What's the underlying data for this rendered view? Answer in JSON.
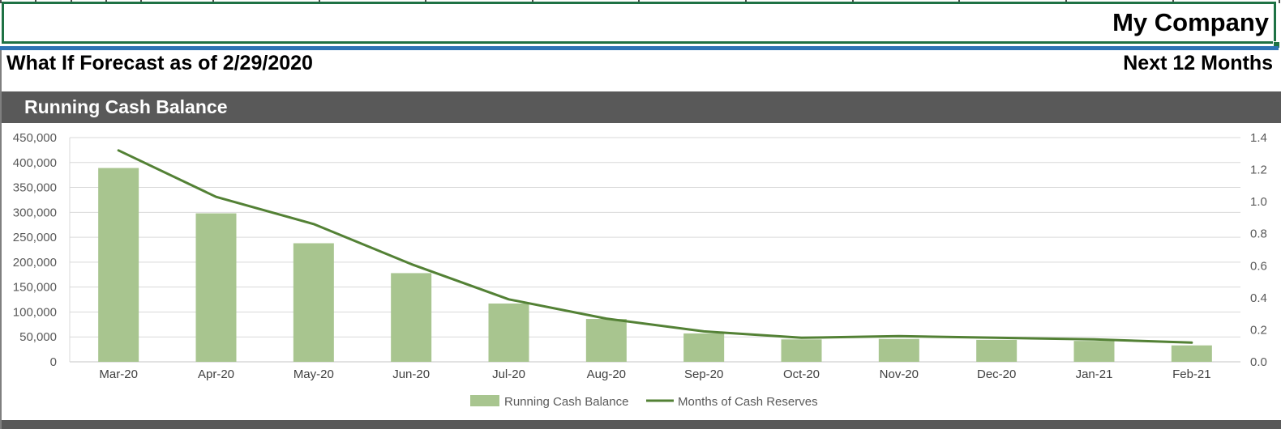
{
  "header": {
    "company": "My Company",
    "forecast_title": "What If Forecast as of 2/29/2020",
    "period_label": "Next 12 Months"
  },
  "section": {
    "title": "Running Cash Balance"
  },
  "chart_data": {
    "type": "bar",
    "subtype": "combo-bar-line",
    "title": "Running Cash Balance",
    "categories": [
      "Mar-20",
      "Apr-20",
      "May-20",
      "Jun-20",
      "Jul-20",
      "Aug-20",
      "Sep-20",
      "Oct-20",
      "Nov-20",
      "Dec-20",
      "Jan-21",
      "Feb-21"
    ],
    "series": [
      {
        "name": "Running Cash Balance",
        "type": "bar",
        "axis": "left",
        "color": "#a8c58f",
        "values": [
          389000,
          298000,
          238000,
          178000,
          117000,
          86000,
          57000,
          45000,
          46000,
          44000,
          42000,
          33000
        ]
      },
      {
        "name": "Months of Cash Reserves",
        "type": "line",
        "axis": "right",
        "color": "#538135",
        "values": [
          1.32,
          1.03,
          0.86,
          0.61,
          0.39,
          0.27,
          0.19,
          0.15,
          0.16,
          0.15,
          0.14,
          0.12
        ]
      }
    ],
    "left_axis": {
      "min": 0,
      "max": 450000,
      "step": 50000,
      "tick_labels": [
        "450,000",
        "400,000",
        "350,000",
        "300,000",
        "250,000",
        "200,000",
        "150,000",
        "100,000",
        "50,000",
        "0"
      ]
    },
    "right_axis": {
      "min": 0,
      "max": 1.4,
      "step": 0.2,
      "tick_labels": [
        "1.4",
        "1.2",
        "1.0",
        "0.8",
        "0.6",
        "0.4",
        "0.2",
        "0.0"
      ]
    },
    "grid": true,
    "legend_position": "bottom"
  },
  "colors": {
    "selection_green": "#1f7245",
    "divider_blue": "#2e74b5",
    "section_gray": "#595959",
    "bar_fill": "#a8c58f",
    "line_green": "#538135",
    "gridline": "#d9d9d9",
    "axis_text": "#595959",
    "category_text": "#404040"
  }
}
